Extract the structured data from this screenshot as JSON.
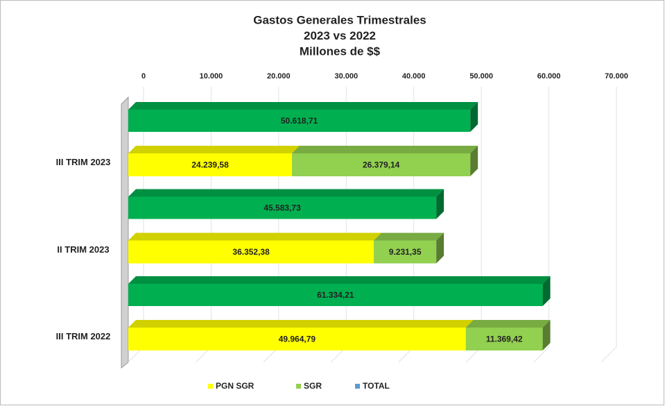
{
  "chart_data": {
    "type": "bar",
    "title": [
      "Gastos Generales Trimestrales",
      "2023 vs 2022",
      "Millones de $$"
    ],
    "categories": [
      "III TRIM 2023",
      "II TRIM 2023",
      "III TRIM 2022"
    ],
    "series": [
      {
        "name": "PGN SGR",
        "color": "#ffff00",
        "values": [
          24239.58,
          36352.38,
          49964.79
        ],
        "value_labels": [
          "24.239,58",
          "36.352,38",
          "49.964,79"
        ]
      },
      {
        "name": "SGR",
        "color": "#92d050",
        "values": [
          26379.14,
          9231.35,
          11369.42
        ],
        "value_labels": [
          "26.379,14",
          "9.231,35",
          "11.369,42"
        ]
      },
      {
        "name": "TOTAL",
        "color": "#00b050",
        "legend_color": "#5b9bd5",
        "values": [
          50618.71,
          45583.73,
          61334.21
        ],
        "value_labels": [
          "50.618,71",
          "45.583,73",
          "61.334,21"
        ]
      }
    ],
    "xlim": [
      0,
      70000
    ],
    "xticks": [
      0,
      {
        "value": 10000,
        "label": "10.000"
      },
      {
        "value": 20000,
        "label": "20.000"
      },
      {
        "value": 30000,
        "label": "30.000"
      },
      {
        "value": 40000,
        "label": "40.000"
      },
      {
        "value": 50000,
        "label": "50.000"
      },
      {
        "value": 60000,
        "label": "60.000"
      },
      {
        "value": 70000,
        "label": "70.000"
      }
    ],
    "grid": true,
    "legend": "bottom"
  }
}
